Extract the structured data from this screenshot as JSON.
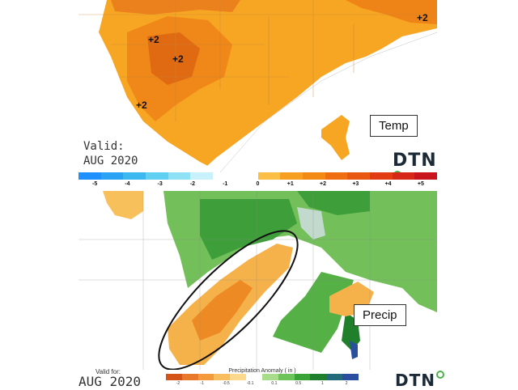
{
  "temp_panel": {
    "box_label": "Temp",
    "valid_line1": "Valid:",
    "valid_line2": "AUG 2020",
    "brand": "DTN",
    "anomaly_labels": [
      "+2",
      "+2",
      "+2",
      "+2"
    ]
  },
  "temp_scale": {
    "ticks": [
      "-5",
      "-4",
      "-3",
      "-2",
      "-1",
      "0",
      "+1",
      "+2",
      "+3",
      "+4",
      "+5"
    ],
    "colors": [
      "#1e90ff",
      "#2aa3f5",
      "#3cb8f0",
      "#5fcff2",
      "#8fe1f6",
      "#c9f1fb",
      "#ffffff",
      "#ffffff",
      "#fbbf45",
      "#f7a020",
      "#f28a14",
      "#ee6e10",
      "#e85810",
      "#e23c12",
      "#d62718",
      "#c9131d"
    ]
  },
  "precip_panel": {
    "box_label": "Precip",
    "valid_line1": "Valid for:",
    "valid_line2": "AUG 2020",
    "brand": "DTN"
  },
  "precip_scale": {
    "title": "Precipitation Anomaly ( in )",
    "ticks": [
      "-2",
      "-1",
      "-0.5",
      "-0.1",
      "0.1",
      "0.5",
      "1",
      "2"
    ],
    "colors": [
      "#d4541a",
      "#e8782a",
      "#f29a3c",
      "#f8bd5c",
      "#fcd98c",
      "#ffffff",
      "#a8dc8a",
      "#6cc45a",
      "#3aa338",
      "#1f7f2a",
      "#236a7a",
      "#2a4f9e"
    ]
  }
}
